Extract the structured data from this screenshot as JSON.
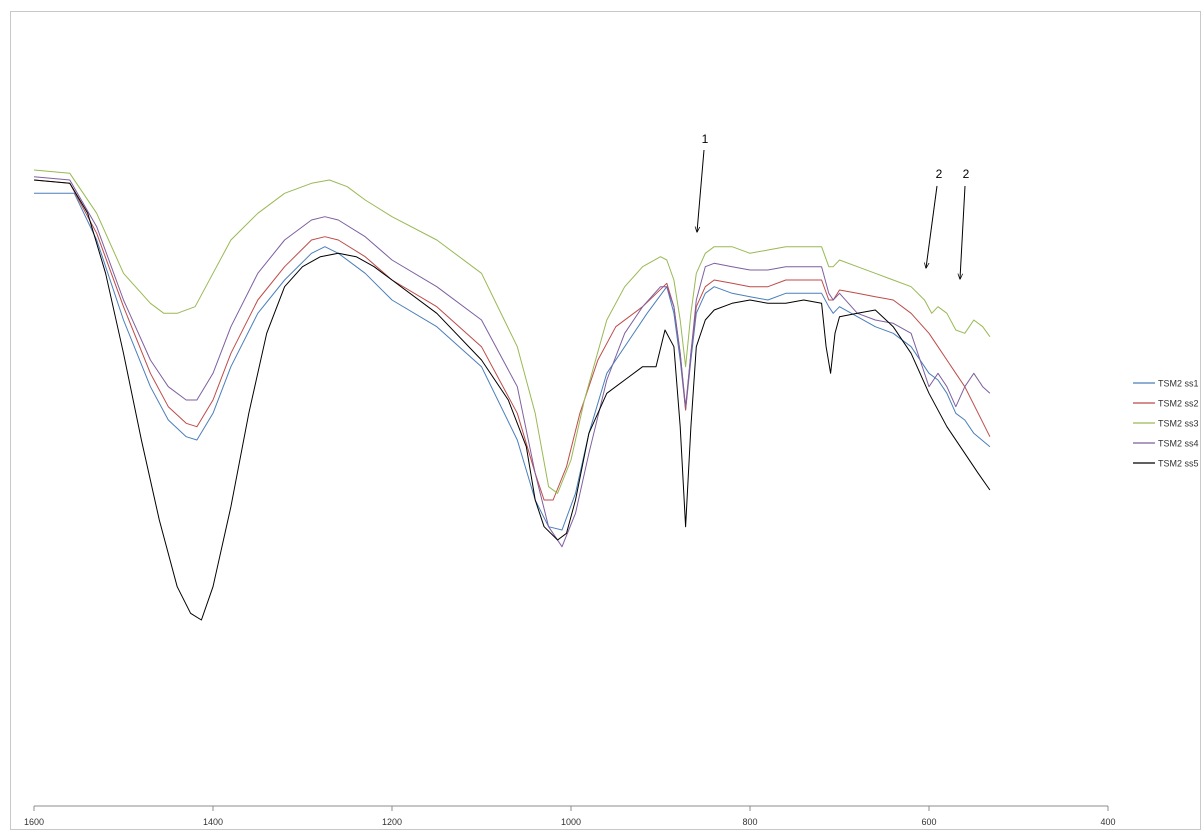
{
  "chart_data": {
    "type": "line",
    "title": "",
    "xlabel": "",
    "ylabel": "",
    "x_reversed": true,
    "xlim": [
      1600,
      400
    ],
    "x_ticks": [
      "1600",
      "1400",
      "1200",
      "1000",
      "800",
      "600",
      "400"
    ],
    "y_axis_shown": false,
    "grid": false,
    "legend_position": "right",
    "series": [
      {
        "name": "TSM2 ss1",
        "color": "#4a7ebb",
        "points": [
          [
            1600,
            0.95
          ],
          [
            1555,
            0.95
          ],
          [
            1530,
            0.88
          ],
          [
            1500,
            0.76
          ],
          [
            1470,
            0.66
          ],
          [
            1450,
            0.61
          ],
          [
            1430,
            0.585
          ],
          [
            1418,
            0.58
          ],
          [
            1400,
            0.62
          ],
          [
            1380,
            0.69
          ],
          [
            1350,
            0.77
          ],
          [
            1320,
            0.82
          ],
          [
            1290,
            0.86
          ],
          [
            1275,
            0.87
          ],
          [
            1260,
            0.86
          ],
          [
            1230,
            0.83
          ],
          [
            1200,
            0.79
          ],
          [
            1150,
            0.75
          ],
          [
            1100,
            0.69
          ],
          [
            1060,
            0.58
          ],
          [
            1040,
            0.49
          ],
          [
            1025,
            0.45
          ],
          [
            1010,
            0.445
          ],
          [
            995,
            0.5
          ],
          [
            980,
            0.59
          ],
          [
            960,
            0.68
          ],
          [
            935,
            0.73
          ],
          [
            915,
            0.77
          ],
          [
            893,
            0.81
          ],
          [
            885,
            0.77
          ],
          [
            878,
            0.7
          ],
          [
            872,
            0.625
          ],
          [
            866,
            0.7
          ],
          [
            860,
            0.77
          ],
          [
            850,
            0.8
          ],
          [
            840,
            0.81
          ],
          [
            820,
            0.8
          ],
          [
            800,
            0.795
          ],
          [
            780,
            0.79
          ],
          [
            760,
            0.8
          ],
          [
            740,
            0.8
          ],
          [
            720,
            0.8
          ],
          [
            712,
            0.78
          ],
          [
            707,
            0.77
          ],
          [
            700,
            0.78
          ],
          [
            680,
            0.765
          ],
          [
            660,
            0.75
          ],
          [
            640,
            0.74
          ],
          [
            620,
            0.72
          ],
          [
            600,
            0.68
          ],
          [
            590,
            0.67
          ],
          [
            580,
            0.65
          ],
          [
            570,
            0.62
          ],
          [
            560,
            0.61
          ],
          [
            550,
            0.59
          ],
          [
            532,
            0.57
          ]
        ]
      },
      {
        "name": "TSM2 ss2",
        "color": "#be4b48",
        "points": [
          [
            1600,
            0.97
          ],
          [
            1560,
            0.965
          ],
          [
            1530,
            0.89
          ],
          [
            1500,
            0.78
          ],
          [
            1470,
            0.68
          ],
          [
            1450,
            0.63
          ],
          [
            1430,
            0.605
          ],
          [
            1418,
            0.6
          ],
          [
            1400,
            0.64
          ],
          [
            1380,
            0.71
          ],
          [
            1350,
            0.79
          ],
          [
            1320,
            0.84
          ],
          [
            1290,
            0.88
          ],
          [
            1275,
            0.885
          ],
          [
            1260,
            0.88
          ],
          [
            1230,
            0.855
          ],
          [
            1200,
            0.82
          ],
          [
            1150,
            0.78
          ],
          [
            1100,
            0.72
          ],
          [
            1060,
            0.62
          ],
          [
            1040,
            0.53
          ],
          [
            1030,
            0.49
          ],
          [
            1020,
            0.49
          ],
          [
            1005,
            0.54
          ],
          [
            990,
            0.62
          ],
          [
            970,
            0.7
          ],
          [
            950,
            0.75
          ],
          [
            920,
            0.78
          ],
          [
            893,
            0.815
          ],
          [
            885,
            0.78
          ],
          [
            878,
            0.71
          ],
          [
            872,
            0.625
          ],
          [
            866,
            0.71
          ],
          [
            860,
            0.78
          ],
          [
            850,
            0.81
          ],
          [
            840,
            0.82
          ],
          [
            820,
            0.815
          ],
          [
            800,
            0.81
          ],
          [
            780,
            0.81
          ],
          [
            760,
            0.82
          ],
          [
            740,
            0.82
          ],
          [
            720,
            0.82
          ],
          [
            712,
            0.79
          ],
          [
            707,
            0.79
          ],
          [
            700,
            0.805
          ],
          [
            680,
            0.8
          ],
          [
            660,
            0.795
          ],
          [
            640,
            0.79
          ],
          [
            620,
            0.77
          ],
          [
            600,
            0.74
          ],
          [
            590,
            0.72
          ],
          [
            580,
            0.7
          ],
          [
            570,
            0.68
          ],
          [
            560,
            0.66
          ],
          [
            545,
            0.62
          ],
          [
            532,
            0.585
          ]
        ]
      },
      {
        "name": "TSM2 ss3",
        "color": "#98b954",
        "points": [
          [
            1600,
            0.985
          ],
          [
            1560,
            0.98
          ],
          [
            1530,
            0.92
          ],
          [
            1500,
            0.83
          ],
          [
            1470,
            0.785
          ],
          [
            1455,
            0.77
          ],
          [
            1440,
            0.77
          ],
          [
            1420,
            0.78
          ],
          [
            1400,
            0.83
          ],
          [
            1380,
            0.88
          ],
          [
            1350,
            0.92
          ],
          [
            1320,
            0.95
          ],
          [
            1290,
            0.965
          ],
          [
            1270,
            0.97
          ],
          [
            1250,
            0.96
          ],
          [
            1230,
            0.94
          ],
          [
            1200,
            0.915
          ],
          [
            1150,
            0.88
          ],
          [
            1100,
            0.83
          ],
          [
            1060,
            0.72
          ],
          [
            1040,
            0.62
          ],
          [
            1025,
            0.51
          ],
          [
            1015,
            0.5
          ],
          [
            1000,
            0.55
          ],
          [
            985,
            0.64
          ],
          [
            960,
            0.76
          ],
          [
            940,
            0.81
          ],
          [
            920,
            0.84
          ],
          [
            900,
            0.855
          ],
          [
            893,
            0.85
          ],
          [
            885,
            0.82
          ],
          [
            878,
            0.76
          ],
          [
            872,
            0.69
          ],
          [
            866,
            0.77
          ],
          [
            860,
            0.83
          ],
          [
            850,
            0.86
          ],
          [
            840,
            0.87
          ],
          [
            820,
            0.87
          ],
          [
            800,
            0.86
          ],
          [
            780,
            0.865
          ],
          [
            760,
            0.87
          ],
          [
            740,
            0.87
          ],
          [
            720,
            0.87
          ],
          [
            712,
            0.84
          ],
          [
            707,
            0.84
          ],
          [
            700,
            0.85
          ],
          [
            680,
            0.84
          ],
          [
            660,
            0.83
          ],
          [
            640,
            0.82
          ],
          [
            620,
            0.81
          ],
          [
            605,
            0.79
          ],
          [
            597,
            0.77
          ],
          [
            590,
            0.78
          ],
          [
            580,
            0.77
          ],
          [
            570,
            0.745
          ],
          [
            560,
            0.74
          ],
          [
            550,
            0.76
          ],
          [
            540,
            0.75
          ],
          [
            532,
            0.735
          ]
        ]
      },
      {
        "name": "TSM2 ss4",
        "color": "#7d5fa0",
        "points": [
          [
            1600,
            0.975
          ],
          [
            1560,
            0.97
          ],
          [
            1530,
            0.9
          ],
          [
            1500,
            0.79
          ],
          [
            1470,
            0.7
          ],
          [
            1450,
            0.66
          ],
          [
            1430,
            0.64
          ],
          [
            1418,
            0.64
          ],
          [
            1400,
            0.68
          ],
          [
            1380,
            0.75
          ],
          [
            1350,
            0.83
          ],
          [
            1320,
            0.88
          ],
          [
            1290,
            0.91
          ],
          [
            1275,
            0.915
          ],
          [
            1260,
            0.91
          ],
          [
            1230,
            0.885
          ],
          [
            1200,
            0.85
          ],
          [
            1150,
            0.81
          ],
          [
            1100,
            0.76
          ],
          [
            1060,
            0.66
          ],
          [
            1040,
            0.53
          ],
          [
            1025,
            0.45
          ],
          [
            1010,
            0.42
          ],
          [
            995,
            0.47
          ],
          [
            980,
            0.56
          ],
          [
            960,
            0.67
          ],
          [
            940,
            0.74
          ],
          [
            920,
            0.78
          ],
          [
            900,
            0.81
          ],
          [
            893,
            0.81
          ],
          [
            885,
            0.78
          ],
          [
            878,
            0.71
          ],
          [
            872,
            0.63
          ],
          [
            866,
            0.71
          ],
          [
            860,
            0.79
          ],
          [
            850,
            0.84
          ],
          [
            840,
            0.845
          ],
          [
            820,
            0.84
          ],
          [
            800,
            0.835
          ],
          [
            780,
            0.835
          ],
          [
            760,
            0.84
          ],
          [
            740,
            0.84
          ],
          [
            720,
            0.84
          ],
          [
            712,
            0.8
          ],
          [
            707,
            0.79
          ],
          [
            700,
            0.8
          ],
          [
            680,
            0.77
          ],
          [
            660,
            0.76
          ],
          [
            640,
            0.755
          ],
          [
            620,
            0.74
          ],
          [
            600,
            0.66
          ],
          [
            590,
            0.68
          ],
          [
            580,
            0.66
          ],
          [
            570,
            0.63
          ],
          [
            560,
            0.66
          ],
          [
            550,
            0.68
          ],
          [
            540,
            0.66
          ],
          [
            532,
            0.65
          ]
        ]
      },
      {
        "name": "TSM2 ss5",
        "color": "#000000",
        "points": [
          [
            1600,
            0.97
          ],
          [
            1560,
            0.965
          ],
          [
            1540,
            0.92
          ],
          [
            1520,
            0.83
          ],
          [
            1500,
            0.71
          ],
          [
            1480,
            0.58
          ],
          [
            1460,
            0.46
          ],
          [
            1440,
            0.36
          ],
          [
            1425,
            0.32
          ],
          [
            1413,
            0.31
          ],
          [
            1400,
            0.36
          ],
          [
            1380,
            0.48
          ],
          [
            1360,
            0.62
          ],
          [
            1340,
            0.74
          ],
          [
            1320,
            0.81
          ],
          [
            1300,
            0.84
          ],
          [
            1280,
            0.855
          ],
          [
            1260,
            0.86
          ],
          [
            1240,
            0.855
          ],
          [
            1220,
            0.84
          ],
          [
            1200,
            0.82
          ],
          [
            1150,
            0.77
          ],
          [
            1100,
            0.7
          ],
          [
            1070,
            0.64
          ],
          [
            1050,
            0.57
          ],
          [
            1040,
            0.49
          ],
          [
            1030,
            0.45
          ],
          [
            1015,
            0.43
          ],
          [
            1005,
            0.44
          ],
          [
            995,
            0.49
          ],
          [
            980,
            0.59
          ],
          [
            960,
            0.65
          ],
          [
            940,
            0.67
          ],
          [
            920,
            0.69
          ],
          [
            905,
            0.69
          ],
          [
            895,
            0.745
          ],
          [
            885,
            0.72
          ],
          [
            878,
            0.6
          ],
          [
            872,
            0.45
          ],
          [
            866,
            0.6
          ],
          [
            860,
            0.72
          ],
          [
            850,
            0.76
          ],
          [
            840,
            0.775
          ],
          [
            820,
            0.785
          ],
          [
            800,
            0.79
          ],
          [
            780,
            0.785
          ],
          [
            760,
            0.785
          ],
          [
            740,
            0.79
          ],
          [
            720,
            0.785
          ],
          [
            715,
            0.72
          ],
          [
            710,
            0.68
          ],
          [
            705,
            0.74
          ],
          [
            700,
            0.765
          ],
          [
            680,
            0.77
          ],
          [
            660,
            0.775
          ],
          [
            640,
            0.75
          ],
          [
            620,
            0.71
          ],
          [
            600,
            0.65
          ],
          [
            580,
            0.6
          ],
          [
            560,
            0.56
          ],
          [
            545,
            0.53
          ],
          [
            532,
            0.505
          ]
        ]
      }
    ],
    "annotations": [
      {
        "label": "1",
        "x": 862
      },
      {
        "label": "2",
        "x": 601
      },
      {
        "label": "2",
        "x": 566
      }
    ]
  }
}
